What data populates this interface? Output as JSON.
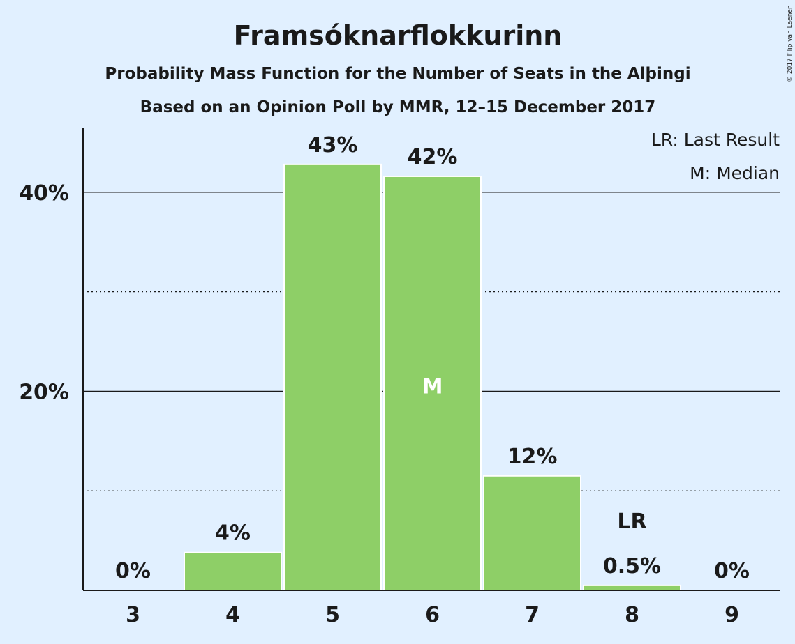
{
  "chart_data": {
    "type": "bar",
    "title": "Framsóknarflokkurinn",
    "subtitle": "Probability Mass Function for the Number of Seats in the Alþingi",
    "subtitle2": "Based on an Opinion Poll by MMR, 12–15 December 2017",
    "categories": [
      "3",
      "4",
      "5",
      "6",
      "7",
      "8",
      "9"
    ],
    "values": [
      0,
      3.8,
      42.8,
      41.6,
      11.5,
      0.5,
      0
    ],
    "data_labels": [
      "0%",
      "4%",
      "43%",
      "42%",
      "12%",
      "0.5%",
      "0%"
    ],
    "ylim": [
      0,
      46.5
    ],
    "y_major_ticks": [
      20,
      40
    ],
    "y_major_tick_labels": [
      "20%",
      "40%"
    ],
    "y_minor_gridlines": [
      10,
      30
    ],
    "grid": true,
    "bar_color": "#8ecf67",
    "median": {
      "category": "6",
      "mark": "M"
    },
    "last_result": {
      "category": "8",
      "mark": "LR"
    },
    "legend": {
      "placement": "top-right",
      "lines": [
        "LR: Last Result",
        "M: Median"
      ]
    },
    "copyright": "© 2017 Filip van Laenen"
  }
}
